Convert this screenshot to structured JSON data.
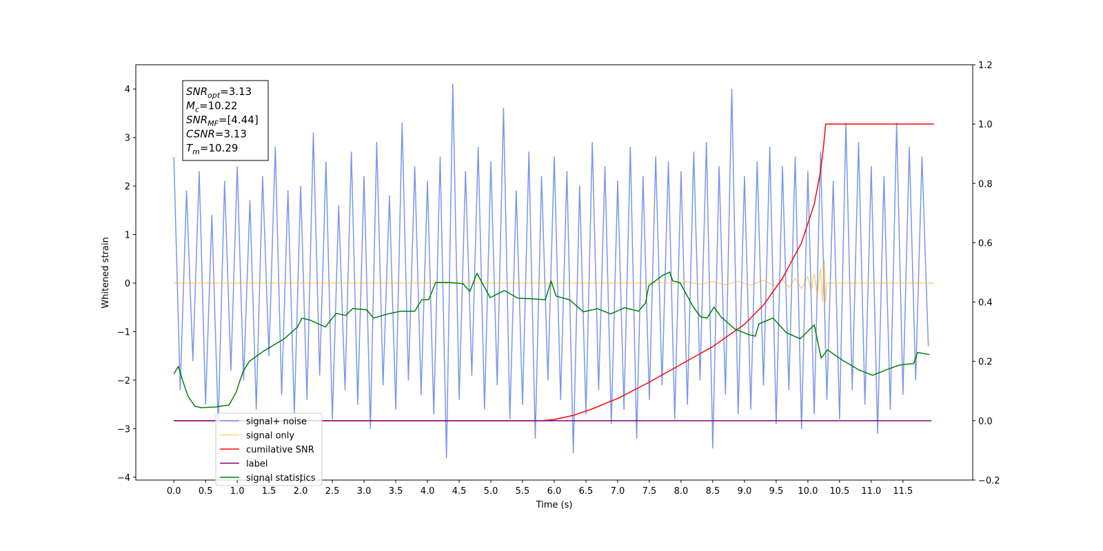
{
  "chart_data": {
    "type": "line",
    "xlabel": "Time (s)",
    "ylabel": "Whitened strain",
    "xlim": [
      -0.6,
      12.6
    ],
    "ylim": [
      -4.06,
      4.5
    ],
    "y2lim": [
      -0.2,
      1.2
    ],
    "xticks": [
      {
        "value": 0,
        "label": "0.0"
      },
      0.5,
      {
        "value": 1,
        "label": "1.0"
      },
      1.5,
      {
        "value": 2,
        "label": "2.0"
      },
      2.5,
      {
        "value": 3,
        "label": "3.0"
      },
      3.5,
      {
        "value": 4,
        "label": "4.0"
      },
      4.5,
      {
        "value": 5,
        "label": "5.0"
      },
      5.5,
      {
        "value": 6,
        "label": "6.0"
      },
      6.5,
      {
        "value": 7,
        "label": "7.0"
      },
      7.5,
      {
        "value": 8,
        "label": "8.0"
      },
      8.5,
      {
        "value": 9,
        "label": "9.0"
      },
      9.5,
      {
        "value": 10,
        "label": "10.0"
      },
      10.5,
      {
        "value": 11,
        "label": "11.0"
      },
      11.5
    ],
    "yticks": [
      {
        "value": -4,
        "label": "−4"
      },
      {
        "value": -3,
        "label": "−3"
      },
      {
        "value": -2,
        "label": "−2"
      },
      {
        "value": -1,
        "label": "−1"
      },
      0,
      1,
      2,
      3,
      4
    ],
    "y2ticks": [
      {
        "value": -0.2,
        "label": "−0.2"
      },
      {
        "value": 0,
        "label": "0.0"
      },
      0.2,
      0.4,
      0.6,
      0.8,
      {
        "value": 1,
        "label": "1.0"
      },
      1.2
    ],
    "legend": "lower left",
    "annotation": [
      {
        "base": "SNR",
        "sub": "opt",
        "rest": "=3.13"
      },
      {
        "base": "M",
        "sub": "c",
        "rest": "=10.22"
      },
      {
        "base": "SNR",
        "sub": "MF",
        "rest": "=[4.44]"
      },
      {
        "base": "CSNR",
        "sub": "",
        "rest": "=3.13"
      },
      {
        "base": "T",
        "sub": "m",
        "rest": "=10.29"
      }
    ],
    "series": [
      {
        "name": "signal+ noise",
        "color": "royalblue",
        "alpha": 0.7,
        "axis": "y",
        "x": [
          0,
          0.1,
          0.2,
          0.3,
          0.4,
          0.5,
          0.6,
          0.7,
          0.8,
          0.9,
          1,
          1.1,
          1.2,
          1.3,
          1.4,
          1.5,
          1.6,
          1.7,
          1.8,
          1.9,
          2,
          2.1,
          2.2,
          2.3,
          2.4,
          2.5,
          2.6,
          2.7,
          2.8,
          2.9,
          3,
          3.1,
          3.2,
          3.3,
          3.4,
          3.5,
          3.6,
          3.7,
          3.8,
          3.9,
          4,
          4.1,
          4.2,
          4.3,
          4.4,
          4.5,
          4.6,
          4.7,
          4.8,
          4.9,
          5,
          5.1,
          5.2,
          5.3,
          5.4,
          5.5,
          5.6,
          5.7,
          5.8,
          5.9,
          6,
          6.1,
          6.2,
          6.3,
          6.4,
          6.5,
          6.6,
          6.7,
          6.8,
          6.9,
          7,
          7.1,
          7.2,
          7.3,
          7.4,
          7.5,
          7.6,
          7.7,
          7.8,
          7.9,
          8,
          8.1,
          8.2,
          8.3,
          8.4,
          8.5,
          8.6,
          8.7,
          8.8,
          8.9,
          9,
          9.1,
          9.2,
          9.3,
          9.4,
          9.5,
          9.6,
          9.7,
          9.8,
          9.9,
          10,
          10.1,
          10.2,
          10.3,
          10.4,
          10.5,
          10.6,
          10.7,
          10.8,
          10.9,
          11,
          11.1,
          11.2,
          11.3,
          11.4,
          11.5,
          11.6,
          11.7,
          11.8,
          11.9
        ],
        "values": [
          2.6,
          -2.2,
          1.9,
          -1.6,
          2.3,
          -2.5,
          1.4,
          -2.9,
          2.1,
          -1.8,
          2.4,
          -2.0,
          1.7,
          -2.6,
          2.2,
          -1.5,
          2.8,
          -2.3,
          1.9,
          -2.7,
          2.0,
          -2.4,
          3.1,
          -1.9,
          2.5,
          -2.8,
          1.6,
          -2.2,
          2.7,
          -2.5,
          2.2,
          -3.0,
          2.9,
          -2.1,
          1.8,
          -2.6,
          3.3,
          -2.0,
          2.4,
          -2.3,
          2.1,
          -2.7,
          2.6,
          -3.6,
          4.1,
          -2.4,
          2.3,
          -1.9,
          2.8,
          -2.6,
          2.5,
          -2.1,
          3.6,
          -2.8,
          1.9,
          -2.5,
          2.7,
          -3.2,
          2.2,
          -2.0,
          2.6,
          -2.4,
          2.3,
          -3.5,
          2.0,
          -2.7,
          2.9,
          -2.2,
          2.4,
          -2.9,
          2.1,
          -2.6,
          2.8,
          -3.2,
          2.2,
          -2.4,
          2.6,
          -2.1,
          2.5,
          -2.8,
          2.3,
          -2.5,
          2.7,
          -2.0,
          2.9,
          -3.4,
          2.4,
          -2.3,
          4.0,
          -2.7,
          2.2,
          -2.6,
          2.5,
          -2.1,
          2.8,
          -2.9,
          2.4,
          -2.2,
          2.6,
          -3.0,
          2.3,
          -2.7,
          2.7,
          -2.4,
          2.1,
          -2.8,
          3.3,
          -2.2,
          2.9,
          -2.5,
          2.4,
          -3.1,
          2.2,
          -2.6,
          3.3,
          -2.3,
          2.8,
          -2.0,
          2.6,
          -1.3
        ]
      },
      {
        "name": "signal only",
        "color": "orange",
        "alpha": 0.5,
        "axis": "y",
        "x": [
          0,
          7.5,
          7.7,
          7.9,
          8.1,
          8.3,
          8.5,
          8.7,
          8.9,
          9.1,
          9.3,
          9.5,
          9.6,
          9.7,
          9.8,
          9.9,
          10,
          10.05,
          10.1,
          10.15,
          10.2,
          10.23,
          10.26,
          10.28,
          10.3,
          11.99
        ],
        "values": [
          0,
          0,
          0.01,
          -0.015,
          0.02,
          -0.025,
          0.03,
          -0.035,
          0.04,
          -0.05,
          0.06,
          -0.07,
          0.08,
          -0.09,
          0.1,
          -0.12,
          0.14,
          -0.16,
          0.2,
          -0.24,
          0.3,
          -0.38,
          0.48,
          -0.4,
          0,
          0
        ]
      },
      {
        "name": "cumilative SNR",
        "color": "red",
        "alpha": 1,
        "axis": "y2",
        "x": [
          0,
          5.8,
          6,
          6.3,
          6.6,
          7,
          7.5,
          8,
          8.5,
          9,
          9.3,
          9.6,
          9.9,
          10.1,
          10.2,
          10.25,
          10.28,
          11.99
        ],
        "values": [
          0,
          0,
          0.004,
          0.018,
          0.04,
          0.075,
          0.13,
          0.19,
          0.25,
          0.325,
          0.39,
          0.48,
          0.6,
          0.73,
          0.84,
          0.93,
          1,
          1
        ]
      },
      {
        "name": "label",
        "color": "purple",
        "alpha": 1,
        "axis": "y2",
        "x": [
          0,
          11.95
        ],
        "values": [
          0,
          0
        ]
      },
      {
        "name": "signal statistics",
        "color": "green",
        "alpha": 1,
        "axis": "y2",
        "x": [
          0,
          0.07,
          0.13,
          0.22,
          0.33,
          0.43,
          0.65,
          0.87,
          0.98,
          1.09,
          1.19,
          1.41,
          1.74,
          1.95,
          2.02,
          2.15,
          2.39,
          2.56,
          2.71,
          2.82,
          3.04,
          3.15,
          3.37,
          3.58,
          3.8,
          3.91,
          4.02,
          4.13,
          4.34,
          4.56,
          4.67,
          4.78,
          4.99,
          5.21,
          5.43,
          5.65,
          5.86,
          5.95,
          6.03,
          6.24,
          6.46,
          6.68,
          6.89,
          7.11,
          7.33,
          7.44,
          7.49,
          7.71,
          7.82,
          7.87,
          7.98,
          8.2,
          8.31,
          8.41,
          8.52,
          8.63,
          8.85,
          9.07,
          9.17,
          9.23,
          9.45,
          9.66,
          9.88,
          10.1,
          10.21,
          10.31,
          10.53,
          10.8,
          11.02,
          11.24,
          11.45,
          11.67,
          11.73,
          11.92
        ],
        "values": [
          0.158,
          0.183,
          0.142,
          0.084,
          0.049,
          0.044,
          0.046,
          0.053,
          0.095,
          0.165,
          0.2,
          0.234,
          0.276,
          0.316,
          0.346,
          0.339,
          0.316,
          0.362,
          0.355,
          0.378,
          0.374,
          0.346,
          0.36,
          0.369,
          0.369,
          0.408,
          0.408,
          0.466,
          0.466,
          0.462,
          0.436,
          0.497,
          0.415,
          0.439,
          0.413,
          0.411,
          0.408,
          0.471,
          0.42,
          0.408,
          0.367,
          0.378,
          0.36,
          0.381,
          0.369,
          0.397,
          0.455,
          0.49,
          0.501,
          0.471,
          0.466,
          0.381,
          0.35,
          0.346,
          0.383,
          0.35,
          0.309,
          0.29,
          0.285,
          0.327,
          0.346,
          0.297,
          0.276,
          0.323,
          0.211,
          0.239,
          0.206,
          0.172,
          0.153,
          0.172,
          0.188,
          0.193,
          0.23,
          0.223
        ]
      }
    ]
  }
}
